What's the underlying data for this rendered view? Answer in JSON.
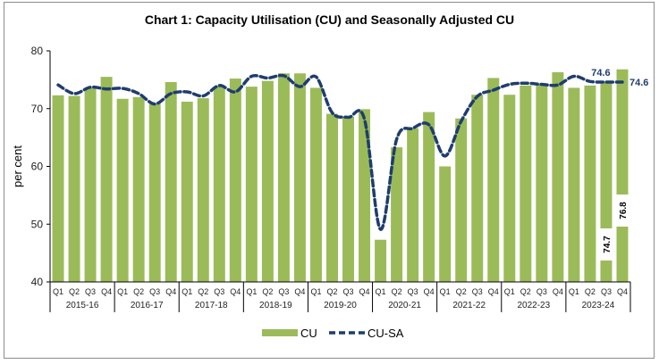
{
  "chart_data": {
    "type": "bar",
    "title": "Chart 1: Capacity Utilisation (CU) and Seasonally Adjusted CU",
    "xlabel": "",
    "ylabel": "per cent",
    "ylim": [
      40,
      80
    ],
    "yticks": [
      "40",
      "50",
      "60",
      "70",
      "80"
    ],
    "grid": false,
    "legend_position": "bottom-center",
    "years": [
      "2015-16",
      "2016-17",
      "2017-18",
      "2018-19",
      "2019-20",
      "2020-21",
      "2021-22",
      "2022-23",
      "2023-24"
    ],
    "quarters": [
      "Q1",
      "Q2",
      "Q3",
      "Q4"
    ],
    "series": [
      {
        "name": "CU",
        "kind": "bar",
        "color": "#9bbb59",
        "values": [
          72.3,
          72.2,
          73.6,
          75.5,
          71.7,
          72.0,
          70.8,
          74.6,
          71.2,
          71.8,
          73.8,
          75.2,
          73.8,
          74.8,
          76.1,
          76.1,
          73.6,
          69.1,
          68.6,
          69.9,
          47.3,
          63.3,
          66.6,
          69.4,
          60.0,
          68.3,
          72.4,
          75.3,
          72.4,
          74.0,
          74.3,
          76.3,
          73.6,
          74.0,
          74.7,
          76.8
        ]
      },
      {
        "name": "CU-SA",
        "kind": "line-dashed",
        "color": "#1f3d6e",
        "values": [
          74.1,
          72.6,
          73.7,
          73.4,
          73.5,
          72.6,
          70.8,
          72.6,
          72.9,
          72.2,
          74.0,
          72.9,
          75.6,
          75.3,
          75.7,
          73.8,
          75.5,
          69.3,
          68.5,
          68.2,
          49.1,
          64.7,
          66.6,
          67.2,
          61.8,
          67.8,
          72.1,
          73.2,
          74.2,
          74.4,
          74.2,
          74.1,
          75.6,
          74.7,
          74.6,
          74.6
        ]
      }
    ],
    "annotations": [
      {
        "series": "CU",
        "index": 34,
        "text": "74.7"
      },
      {
        "series": "CU",
        "index": 35,
        "text": "76.8"
      },
      {
        "series": "CU-SA",
        "index": 34,
        "text": "74.6"
      },
      {
        "series": "CU-SA",
        "index": 35,
        "text": "74.6"
      }
    ]
  }
}
